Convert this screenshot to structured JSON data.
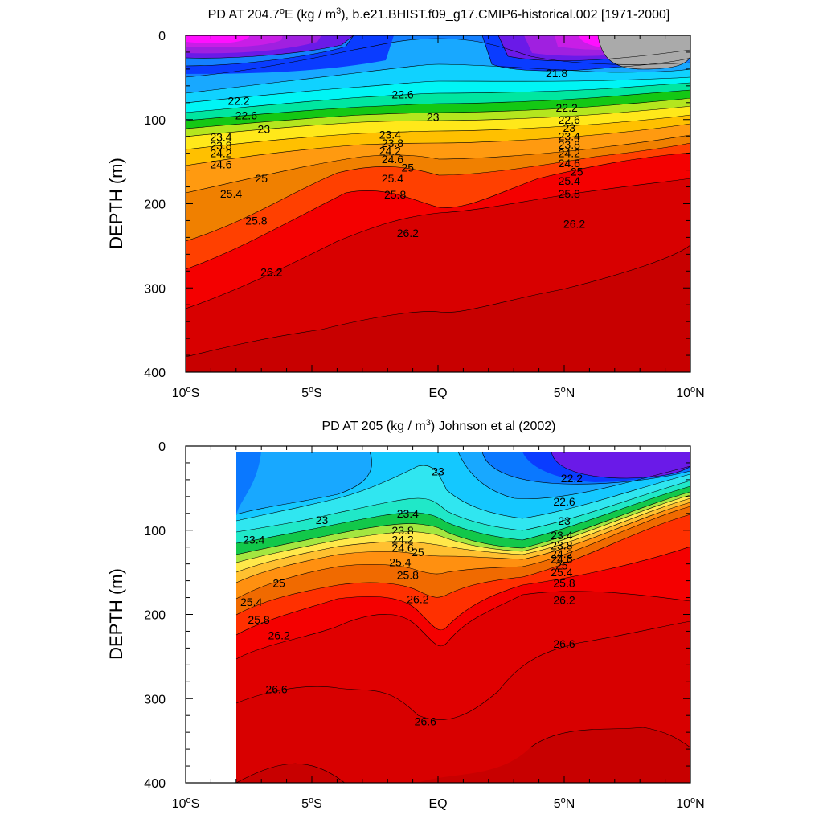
{
  "chart_data": [
    {
      "type": "contour",
      "title_pre": "PD AT 204.7",
      "title_deg": "o",
      "title_mid": "E (kg / m",
      "title_sup": "3",
      "title_post": "), b.e21.BHIST.f09_g17.CMIP6-historical.002 [1971-2000]",
      "ylabel": "DEPTH (m)",
      "xlim": [
        -10,
        10
      ],
      "ylim": [
        400,
        0
      ],
      "x_ticks": [
        {
          "value": -10,
          "num": "10",
          "deg": "o",
          "hemi": "S"
        },
        {
          "value": -5,
          "num": "5",
          "deg": "o",
          "hemi": "S"
        },
        {
          "value": 0,
          "num": "EQ",
          "deg": "",
          "hemi": ""
        },
        {
          "value": 5,
          "num": "5",
          "deg": "o",
          "hemi": "N"
        },
        {
          "value": 10,
          "num": "10",
          "deg": "o",
          "hemi": "N"
        }
      ],
      "y_ticks": [
        "0",
        "100",
        "200",
        "300",
        "400"
      ],
      "x_start": -10,
      "missing_color": "#aaaaaa",
      "contour_labels": [
        {
          "text": "21.8",
          "x": 4.7,
          "y": 45
        },
        {
          "text": "22.2",
          "x": -7.9,
          "y": 78
        },
        {
          "text": "22.6",
          "x": -1.4,
          "y": 70
        },
        {
          "text": "22.2",
          "x": 5.1,
          "y": 86
        },
        {
          "text": "22.6",
          "x": -7.6,
          "y": 95
        },
        {
          "text": "23",
          "x": -0.2,
          "y": 97
        },
        {
          "text": "22.6",
          "x": 5.2,
          "y": 100
        },
        {
          "text": "23",
          "x": -6.9,
          "y": 111
        },
        {
          "text": "23.4",
          "x": -1.9,
          "y": 118
        },
        {
          "text": "23",
          "x": 5.2,
          "y": 110
        },
        {
          "text": "23.4",
          "x": -8.6,
          "y": 121
        },
        {
          "text": "23.8",
          "x": -1.8,
          "y": 128
        },
        {
          "text": "23.4",
          "x": 5.2,
          "y": 120
        },
        {
          "text": "23.8",
          "x": -8.6,
          "y": 131
        },
        {
          "text": "24.2",
          "x": -1.9,
          "y": 137
        },
        {
          "text": "23.8",
          "x": 5.2,
          "y": 130
        },
        {
          "text": "24.2",
          "x": -8.6,
          "y": 140
        },
        {
          "text": "24.6",
          "x": -1.8,
          "y": 147
        },
        {
          "text": "24.2",
          "x": 5.2,
          "y": 140
        },
        {
          "text": "24.6",
          "x": -8.6,
          "y": 153
        },
        {
          "text": "25",
          "x": -1.2,
          "y": 157
        },
        {
          "text": "24.6",
          "x": 5.2,
          "y": 152
        },
        {
          "text": "25",
          "x": -7.0,
          "y": 170
        },
        {
          "text": "25.4",
          "x": -1.8,
          "y": 170
        },
        {
          "text": "25",
          "x": 5.5,
          "y": 162
        },
        {
          "text": "25.4",
          "x": 5.2,
          "y": 173
        },
        {
          "text": "25.4",
          "x": -8.2,
          "y": 188
        },
        {
          "text": "25.8",
          "x": -1.7,
          "y": 189
        },
        {
          "text": "25.8",
          "x": 5.2,
          "y": 188
        },
        {
          "text": "25.8",
          "x": -7.2,
          "y": 220
        },
        {
          "text": "26.2",
          "x": -1.2,
          "y": 235
        },
        {
          "text": "26.2",
          "x": 5.4,
          "y": 224
        },
        {
          "text": "26.2",
          "x": -6.6,
          "y": 281
        }
      ]
    },
    {
      "type": "contour",
      "title_pre": "PD AT 205 (kg / m",
      "title_sup": "3",
      "title_post": ") Johnson et al (2002)",
      "ylabel": "DEPTH (m)",
      "xlim": [
        -10,
        10
      ],
      "ylim": [
        400,
        0
      ],
      "x_ticks": [
        {
          "value": -10,
          "num": "10",
          "deg": "o",
          "hemi": "S"
        },
        {
          "value": -5,
          "num": "5",
          "deg": "o",
          "hemi": "S"
        },
        {
          "value": 0,
          "num": "EQ",
          "deg": "",
          "hemi": ""
        },
        {
          "value": 5,
          "num": "5",
          "deg": "o",
          "hemi": "N"
        },
        {
          "value": 10,
          "num": "10",
          "deg": "o",
          "hemi": "N"
        }
      ],
      "y_ticks": [
        "0",
        "100",
        "200",
        "300",
        "400"
      ],
      "x_start": -8,
      "missing_color": "",
      "contour_labels": [
        {
          "text": "22.2",
          "x": 5.3,
          "y": 38
        },
        {
          "text": "22.6",
          "x": 5.0,
          "y": 66
        },
        {
          "text": "23",
          "x": 0.0,
          "y": 30
        },
        {
          "text": "23",
          "x": -4.6,
          "y": 88
        },
        {
          "text": "23",
          "x": 5.0,
          "y": 89
        },
        {
          "text": "23.4",
          "x": -1.2,
          "y": 80
        },
        {
          "text": "23.4",
          "x": -7.3,
          "y": 111
        },
        {
          "text": "23.4",
          "x": 4.9,
          "y": 106
        },
        {
          "text": "23.8",
          "x": -1.4,
          "y": 100
        },
        {
          "text": "23.8",
          "x": 4.9,
          "y": 118
        },
        {
          "text": "24.2",
          "x": -1.4,
          "y": 111
        },
        {
          "text": "24.2",
          "x": 4.9,
          "y": 128
        },
        {
          "text": "24.6",
          "x": -1.4,
          "y": 121
        },
        {
          "text": "24.6",
          "x": 4.9,
          "y": 134
        },
        {
          "text": "25",
          "x": -0.8,
          "y": 126
        },
        {
          "text": "25",
          "x": 4.9,
          "y": 142
        },
        {
          "text": "25.4",
          "x": -1.5,
          "y": 138
        },
        {
          "text": "25.4",
          "x": 4.9,
          "y": 150
        },
        {
          "text": "25.8",
          "x": -1.2,
          "y": 153
        },
        {
          "text": "25.8",
          "x": 5.0,
          "y": 163
        },
        {
          "text": "25",
          "x": -6.3,
          "y": 163
        },
        {
          "text": "25.4",
          "x": -7.4,
          "y": 185
        },
        {
          "text": "25.8",
          "x": -7.1,
          "y": 206
        },
        {
          "text": "26.2",
          "x": -6.3,
          "y": 225
        },
        {
          "text": "26.2",
          "x": -0.8,
          "y": 182
        },
        {
          "text": "26.2",
          "x": 5.0,
          "y": 183
        },
        {
          "text": "26.6",
          "x": -6.4,
          "y": 289
        },
        {
          "text": "26.6",
          "x": -0.5,
          "y": 327
        },
        {
          "text": "26.6",
          "x": 5.0,
          "y": 235
        }
      ]
    }
  ]
}
